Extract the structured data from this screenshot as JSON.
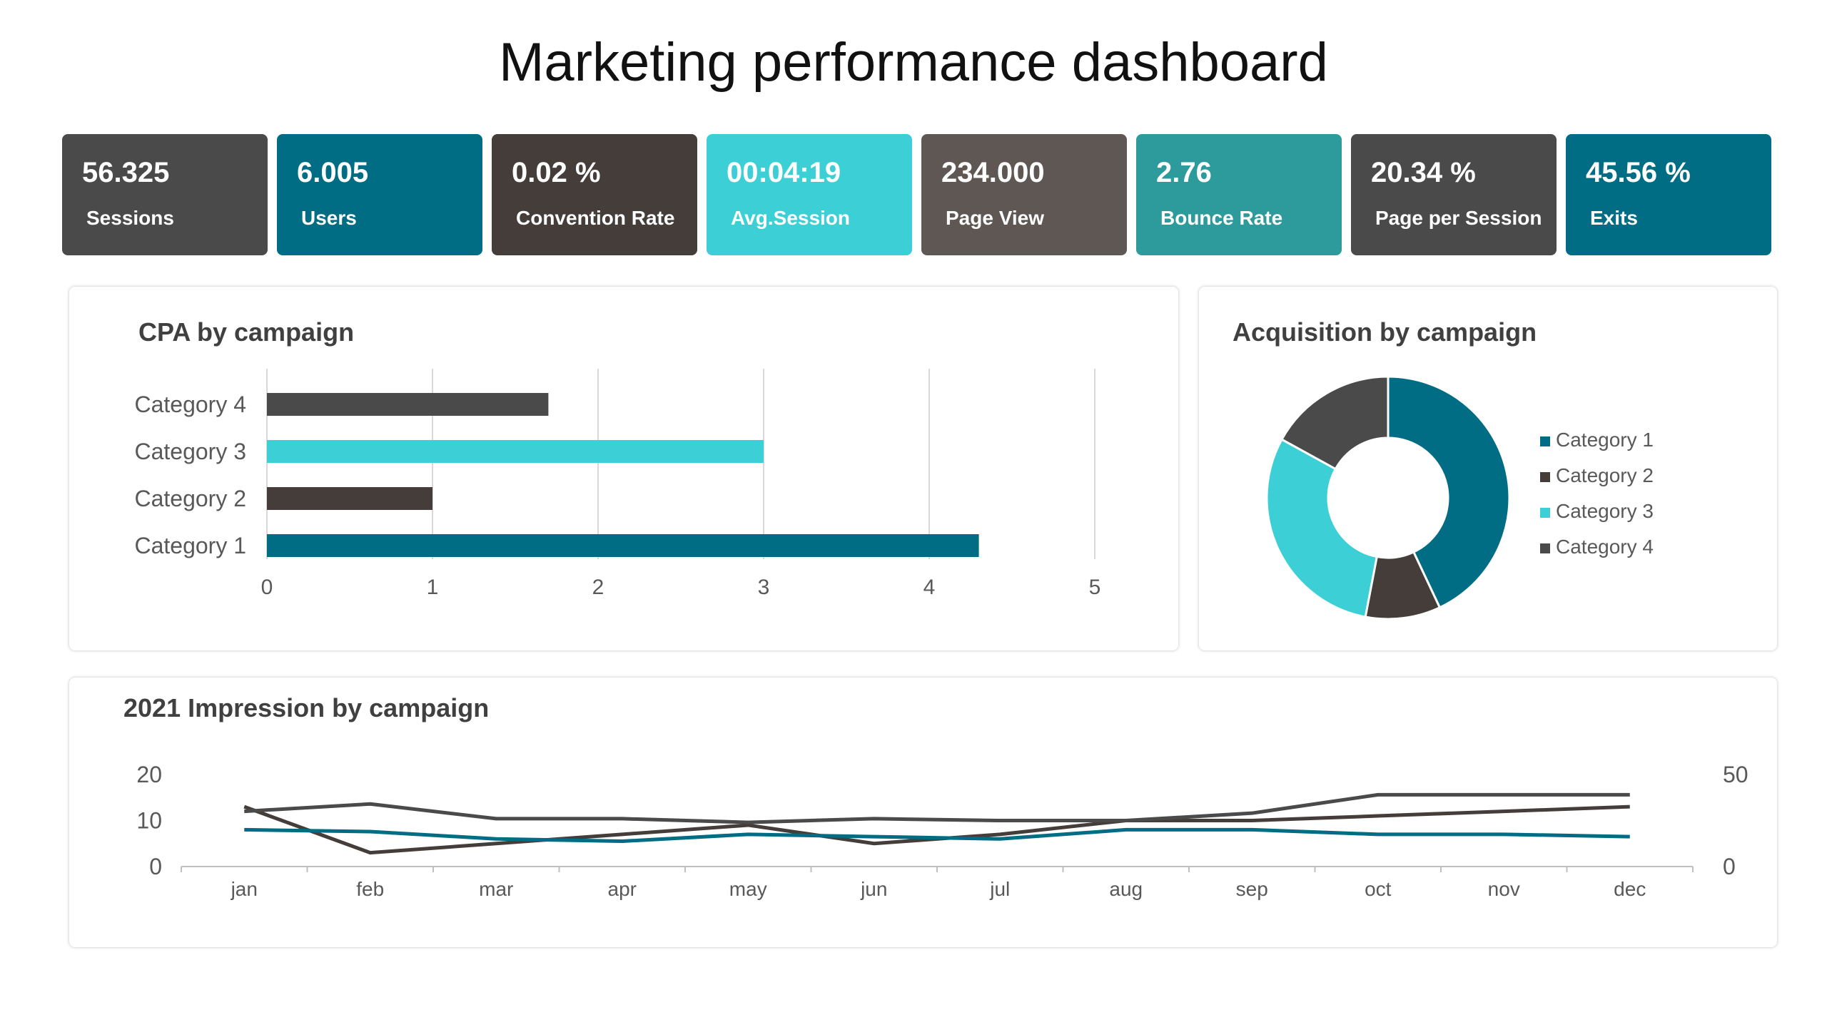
{
  "page": {
    "title": "Marketing performance dashboard"
  },
  "colors": {
    "teal_dark": "#006d84",
    "charcoal": "#4a4a4a",
    "dark_brown": "#453d3a",
    "cyan": "#3cd0d6",
    "taupe": "#5f5753",
    "teal_mid": "#2d9b9b"
  },
  "kpis": [
    {
      "value": "56.325",
      "label": "Sessions",
      "color": "#4a4a4a"
    },
    {
      "value": "6.005",
      "label": "Users",
      "color": "#006d84"
    },
    {
      "value": "0.02 %",
      "label": "Convention Rate",
      "color": "#453d3a"
    },
    {
      "value": "00:04:19",
      "label": "Avg.Session",
      "color": "#3cd0d6"
    },
    {
      "value": "234.000",
      "label": "Page View",
      "color": "#5f5753"
    },
    {
      "value": "2.76",
      "label": "Bounce Rate",
      "color": "#2d9b9b"
    },
    {
      "value": "20.34 %",
      "label": "Page per Session",
      "color": "#4a4a4a"
    },
    {
      "value": "45.56 %",
      "label": "Exits",
      "color": "#006d84"
    }
  ],
  "chart_data": [
    {
      "type": "bar",
      "orientation": "horizontal",
      "title": "CPA by campaign",
      "categories": [
        "Category 1",
        "Category 2",
        "Category 3",
        "Category 4"
      ],
      "values": [
        4.3,
        1.0,
        3.0,
        1.7
      ],
      "colors": [
        "#006d84",
        "#453d3a",
        "#3cd0d6",
        "#4a4a4a"
      ],
      "xlim": [
        0,
        5
      ],
      "xticks": [
        "0",
        "1",
        "2",
        "3",
        "4",
        "5"
      ],
      "grid": true
    },
    {
      "type": "pie",
      "variant": "donut",
      "title": "Acquisition by campaign",
      "labels": [
        "Category 1",
        "Category 2",
        "Category 3",
        "Category 4"
      ],
      "values": [
        43,
        10,
        30,
        17
      ],
      "colors": [
        "#006d84",
        "#453d3a",
        "#3cd0d6",
        "#4a4a4a"
      ],
      "legend": "right"
    },
    {
      "type": "line",
      "title": "2021 Impression by campaign",
      "categories": [
        "jan",
        "feb",
        "mar",
        "apr",
        "may",
        "jun",
        "jul",
        "aug",
        "sep",
        "oct",
        "nov",
        "dec"
      ],
      "series": [
        {
          "values": [
            13,
            3,
            5,
            7,
            9,
            5,
            7,
            10,
            10,
            11,
            12,
            13
          ],
          "axis": "left",
          "color": "#453d3a"
        },
        {
          "values": [
            8,
            7.6,
            6,
            5.5,
            7,
            6.5,
            6,
            8,
            8,
            7,
            7,
            6.5
          ],
          "axis": "left",
          "color": "#006d84"
        },
        {
          "values": [
            30,
            34,
            26,
            26,
            24,
            26,
            25,
            25,
            29,
            39,
            39,
            39
          ],
          "axis": "right",
          "color": "#4a4a4a"
        }
      ],
      "ylim_left": [
        0,
        20
      ],
      "yticks_left": [
        "0",
        "10",
        "20"
      ],
      "ylim_right": [
        0,
        50
      ],
      "yticks_right": [
        "0",
        "50"
      ]
    }
  ]
}
